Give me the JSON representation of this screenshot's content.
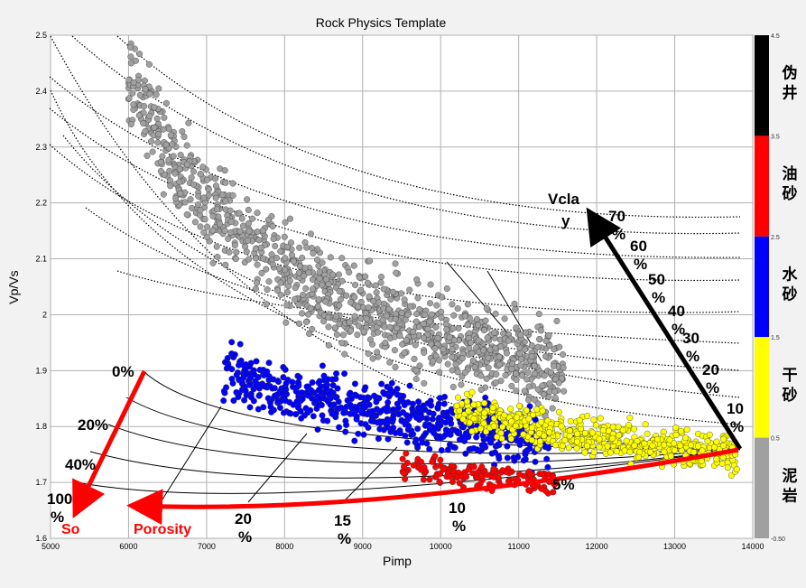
{
  "chart_data": {
    "type": "scatter",
    "title": "Rock Physics Template",
    "xlabel": "Pimp",
    "ylabel": "Vp/Vs",
    "xlim": [
      5000,
      14000
    ],
    "ylim": [
      1.6,
      2.5
    ],
    "x_ticks": [
      "5000",
      "6000",
      "7000",
      "8000",
      "9000",
      "10000",
      "11000",
      "12000",
      "13000",
      "14000"
    ],
    "y_ticks": [
      "1.6",
      "1.7",
      "1.8",
      "1.9",
      "2",
      "2.1",
      "2.2",
      "2.3",
      "2.4",
      "2.5"
    ],
    "grid": true,
    "colorbar": {
      "ticks": [
        "4.5",
        "3.5",
        "2.5",
        "1.5",
        "0.5",
        "-0.50"
      ],
      "bands": [
        {
          "label": "伪井",
          "color": "#000000",
          "from": 3.5,
          "to": 4.5
        },
        {
          "label": "油砂",
          "color": "#ff0000",
          "from": 2.5,
          "to": 3.5
        },
        {
          "label": "水砂",
          "color": "#0000ff",
          "from": 1.5,
          "to": 2.5
        },
        {
          "label": "干砂",
          "color": "#ffff00",
          "from": 0.5,
          "to": 1.5
        },
        {
          "label": "泥岩",
          "color": "#a0a0a0",
          "from": -0.5,
          "to": 0.5
        }
      ]
    },
    "clusters": [
      {
        "name": "泥岩",
        "color": "#a0a0a0",
        "trend_x": [
          6000,
          6500,
          7000,
          7500,
          8000,
          8600,
          9200,
          9800,
          10400,
          11000,
          11600
        ],
        "trend_y": [
          2.42,
          2.3,
          2.2,
          2.13,
          2.08,
          2.03,
          2.0,
          1.97,
          1.94,
          1.92,
          1.9
        ],
        "spread_y": 0.07
      },
      {
        "name": "水砂",
        "color": "#0000ff",
        "trend_x": [
          7200,
          7800,
          8400,
          9000,
          9600,
          10200,
          10800,
          11400
        ],
        "trend_y": [
          1.9,
          1.87,
          1.85,
          1.83,
          1.82,
          1.8,
          1.79,
          1.78
        ],
        "spread_y": 0.045
      },
      {
        "name": "干砂",
        "color": "#ffff00",
        "trend_x": [
          10200,
          10800,
          11400,
          12000,
          12600,
          13200,
          13800
        ],
        "trend_y": [
          1.83,
          1.81,
          1.79,
          1.78,
          1.77,
          1.76,
          1.755
        ],
        "spread_y": 0.03
      },
      {
        "name": "油砂",
        "color": "#ff0000",
        "trend_x": [
          9500,
          10000,
          10500,
          11000,
          11500
        ],
        "trend_y": [
          1.73,
          1.72,
          1.71,
          1.705,
          1.7
        ],
        "spread_y": 0.02
      }
    ],
    "template": {
      "vclay": {
        "name": "Vclay",
        "labels": [
          "70%",
          "60%",
          "50%",
          "40%",
          "30%",
          "20%",
          "10%"
        ]
      },
      "porosity": {
        "name": "Porosity",
        "labels": [
          "5%",
          "10%",
          "15%",
          "20%"
        ]
      },
      "so": {
        "name": "So",
        "labels": [
          "0%",
          "20%",
          "40%",
          "100%"
        ]
      }
    }
  }
}
